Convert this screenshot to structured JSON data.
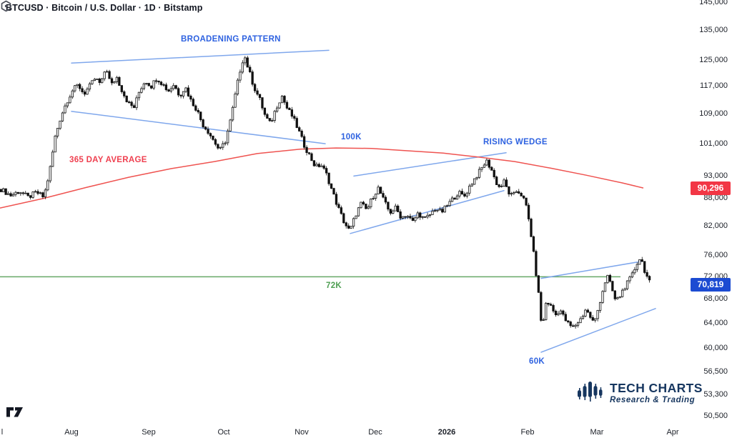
{
  "header": {
    "symbol_title": "BTCUSD · Bitcoin / U.S. Dollar · 1D · Bitstamp"
  },
  "annotations": {
    "broadening_pattern": "BROADENING PATTERN",
    "rising_wedge": "RISING WEDGE",
    "ma_label": "365 DAY AVERAGE",
    "level_100k": "100K",
    "level_72k": "72K",
    "level_60k": "60K"
  },
  "watermark": {
    "name": "TECH CHARTS",
    "tagline": "Research & Trading"
  },
  "colors": {
    "annotation_blue": "#2e62e0",
    "trendline_blue": "#7fa7ec",
    "ma_red": "#ef5350",
    "ma_badge_red": "#f23645",
    "level_green": "#66a967",
    "green_text": "#4d9e51",
    "candle_black": "#111111",
    "navy_logo": "#16365f",
    "axis_text": "#1b1f27",
    "last_price_badge_blue": "#1c4bd2"
  },
  "price_scale": {
    "ticks": [
      {
        "label": "145,000",
        "value": 145000
      },
      {
        "label": "135,000",
        "value": 135000
      },
      {
        "label": "125,000",
        "value": 125000
      },
      {
        "label": "117,000",
        "value": 117000
      },
      {
        "label": "109,000",
        "value": 109000
      },
      {
        "label": "101,000",
        "value": 101000
      },
      {
        "label": "93,000",
        "value": 93000
      },
      {
        "label": "88,000",
        "value": 88000
      },
      {
        "label": "82,000",
        "value": 82000
      },
      {
        "label": "76,000",
        "value": 76000
      },
      {
        "label": "72,000",
        "value": 72000
      },
      {
        "label": "68,000",
        "value": 68000
      },
      {
        "label": "64,000",
        "value": 64000
      },
      {
        "label": "60,000",
        "value": 60000
      },
      {
        "label": "56,500",
        "value": 56500
      },
      {
        "label": "53,300",
        "value": 53300
      },
      {
        "label": "50,500",
        "value": 50500
      }
    ],
    "ma_badge": {
      "label": "90,296",
      "value": 90296
    },
    "last_badge": {
      "label": "70,819",
      "value": 70819
    }
  },
  "time_scale": {
    "ticks": [
      {
        "label": "l",
        "x": 3
      },
      {
        "label": "Aug",
        "x": 100
      },
      {
        "label": "Sep",
        "x": 208
      },
      {
        "label": "Oct",
        "x": 313
      },
      {
        "label": "Nov",
        "x": 422
      },
      {
        "label": "Dec",
        "x": 525
      },
      {
        "label": "2026",
        "x": 625,
        "bold": true
      },
      {
        "label": "Feb",
        "x": 738
      },
      {
        "label": "Mar",
        "x": 835
      },
      {
        "label": "Apr",
        "x": 941
      }
    ]
  },
  "chart_data": {
    "type": "candlestick",
    "symbol": "BTCUSD",
    "exchange": "Bitstamp",
    "interval": "1D",
    "scale_type": "log",
    "ylim": [
      50500,
      147000
    ],
    "x_months": [
      "Jul",
      "Aug",
      "Sep",
      "Oct",
      "Nov",
      "Dec",
      "2026",
      "Feb",
      "Mar",
      "Apr"
    ],
    "last_close": 70819,
    "ma_365_last": 90296,
    "horizontal_level": {
      "price": 72000,
      "x_start": 0,
      "x_end": 868
    },
    "price_path": [
      [
        0,
        90000
      ],
      [
        14,
        88600
      ],
      [
        26,
        89600
      ],
      [
        38,
        88200
      ],
      [
        50,
        89300
      ],
      [
        60,
        88200
      ],
      [
        68,
        94000
      ],
      [
        76,
        103000
      ],
      [
        84,
        108500
      ],
      [
        92,
        112500
      ],
      [
        100,
        115800
      ],
      [
        108,
        117500
      ],
      [
        116,
        114800
      ],
      [
        124,
        117000
      ],
      [
        132,
        119500
      ],
      [
        140,
        117500
      ],
      [
        147,
        123200
      ],
      [
        154,
        117200
      ],
      [
        162,
        119800
      ],
      [
        170,
        115500
      ],
      [
        178,
        112200
      ],
      [
        186,
        110800
      ],
      [
        194,
        115800
      ],
      [
        202,
        118800
      ],
      [
        210,
        117000
      ],
      [
        218,
        119600
      ],
      [
        226,
        117800
      ],
      [
        234,
        115600
      ],
      [
        242,
        117600
      ],
      [
        250,
        114300
      ],
      [
        258,
        116800
      ],
      [
        266,
        112800
      ],
      [
        274,
        110300
      ],
      [
        282,
        106300
      ],
      [
        290,
        104300
      ],
      [
        298,
        101800
      ],
      [
        306,
        99300
      ],
      [
        314,
        101800
      ],
      [
        322,
        108000
      ],
      [
        330,
        117000
      ],
      [
        337,
        124500
      ],
      [
        341,
        126300
      ],
      [
        347,
        121800
      ],
      [
        354,
        116800
      ],
      [
        362,
        113300
      ],
      [
        370,
        108300
      ],
      [
        377,
        106300
      ],
      [
        385,
        110800
      ],
      [
        393,
        114300
      ],
      [
        400,
        110800
      ],
      [
        408,
        108300
      ],
      [
        416,
        104800
      ],
      [
        424,
        100800
      ],
      [
        432,
        98000
      ],
      [
        440,
        95300
      ],
      [
        448,
        95800
      ],
      [
        456,
        93300
      ],
      [
        464,
        89300
      ],
      [
        472,
        85800
      ],
      [
        480,
        82800
      ],
      [
        488,
        80800
      ],
      [
        496,
        84300
      ],
      [
        504,
        86800
      ],
      [
        512,
        85300
      ],
      [
        520,
        88300
      ],
      [
        528,
        90300
      ],
      [
        536,
        87300
      ],
      [
        544,
        84800
      ],
      [
        552,
        85800
      ],
      [
        560,
        83800
      ],
      [
        568,
        84300
      ],
      [
        576,
        82800
      ],
      [
        584,
        84800
      ],
      [
        592,
        83300
      ],
      [
        600,
        84300
      ],
      [
        608,
        85800
      ],
      [
        616,
        84800
      ],
      [
        624,
        86300
      ],
      [
        632,
        87800
      ],
      [
        640,
        89300
      ],
      [
        648,
        88300
      ],
      [
        656,
        90800
      ],
      [
        664,
        92800
      ],
      [
        672,
        94800
      ],
      [
        679,
        96800
      ],
      [
        686,
        94800
      ],
      [
        692,
        91800
      ],
      [
        698,
        90300
      ],
      [
        704,
        91800
      ],
      [
        710,
        89300
      ],
      [
        716,
        88300
      ],
      [
        722,
        89800
      ],
      [
        728,
        88800
      ],
      [
        734,
        86800
      ],
      [
        740,
        82000
      ],
      [
        746,
        75500
      ],
      [
        752,
        69000
      ],
      [
        757,
        62800
      ],
      [
        763,
        67800
      ],
      [
        769,
        66800
      ],
      [
        776,
        65300
      ],
      [
        782,
        66300
      ],
      [
        788,
        64800
      ],
      [
        794,
        63800
      ],
      [
        800,
        63200
      ],
      [
        806,
        64000
      ],
      [
        812,
        64800
      ],
      [
        818,
        66300
      ],
      [
        824,
        65100
      ],
      [
        830,
        63900
      ],
      [
        836,
        66600
      ],
      [
        842,
        69600
      ],
      [
        848,
        72300
      ],
      [
        854,
        70100
      ],
      [
        860,
        67600
      ],
      [
        866,
        68600
      ],
      [
        872,
        70100
      ],
      [
        878,
        71100
      ],
      [
        884,
        72600
      ],
      [
        890,
        74600
      ],
      [
        895,
        75700
      ],
      [
        900,
        73400
      ],
      [
        905,
        71600
      ],
      [
        908,
        70819
      ]
    ],
    "ma_365_path": [
      [
        0,
        85800
      ],
      [
        60,
        87900
      ],
      [
        120,
        90400
      ],
      [
        180,
        92800
      ],
      [
        240,
        94900
      ],
      [
        300,
        96600
      ],
      [
        360,
        98600
      ],
      [
        420,
        99700
      ],
      [
        470,
        100000
      ],
      [
        520,
        99900
      ],
      [
        570,
        99300
      ],
      [
        620,
        98700
      ],
      [
        670,
        97700
      ],
      [
        720,
        96600
      ],
      [
        770,
        95000
      ],
      [
        820,
        93300
      ],
      [
        870,
        91500
      ],
      [
        900,
        90296
      ]
    ],
    "drawings": [
      {
        "name": "broadening-upper-line",
        "p1": [
          100,
          124200
        ],
        "p2": [
          460,
          128300
        ]
      },
      {
        "name": "broadening-lower-line",
        "p1": [
          100,
          109800
        ],
        "p2": [
          455,
          101100
        ]
      },
      {
        "name": "rising-wedge-upper-line",
        "p1": [
          495,
          93100
        ],
        "p2": [
          708,
          98800
        ]
      },
      {
        "name": "rising-wedge-lower-line",
        "p1": [
          490,
          80400
        ],
        "p2": [
          705,
          89700
        ]
      },
      {
        "name": "channel-upper-line",
        "p1": [
          757,
          71700
        ],
        "p2": [
          898,
          74900
        ]
      },
      {
        "name": "channel-lower-line",
        "p1": [
          757,
          59400
        ],
        "p2": [
          917,
          66400
        ]
      }
    ]
  }
}
